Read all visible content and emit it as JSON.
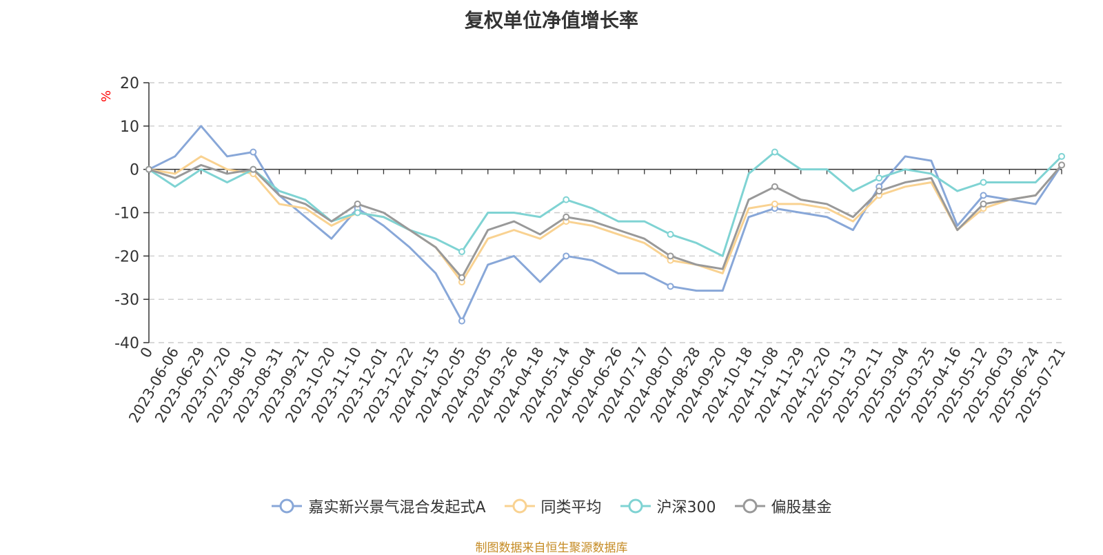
{
  "title": "复权单位净值增长率",
  "source_text": "制图数据来自恒生聚源数据库",
  "chart_data": {
    "type": "line",
    "title": "复权单位净值增长率",
    "xlabel": "",
    "ylabel": "%",
    "ylim": [
      -40,
      20
    ],
    "yticks": [
      20,
      10,
      0,
      -10,
      -20,
      -30,
      -40
    ],
    "grid": true,
    "legend_position": "bottom-center",
    "x_tick_labels": [
      "0",
      "2023-06-06",
      "2023-06-29",
      "2023-07-20",
      "2023-08-10",
      "2023-08-31",
      "2023-09-21",
      "2023-10-20",
      "2023-11-10",
      "2023-12-01",
      "2023-12-22",
      "2024-01-15",
      "2024-02-05",
      "2024-03-05",
      "2024-03-26",
      "2024-04-18",
      "2024-05-14",
      "2024-06-04",
      "2024-06-26",
      "2024-07-17",
      "2024-08-07",
      "2024-08-28",
      "2024-09-20",
      "2024-10-18",
      "2024-11-08",
      "2024-11-29",
      "2024-12-20",
      "2025-01-13",
      "2025-02-11",
      "2025-03-04",
      "2025-03-25",
      "2025-04-16",
      "2025-05-12",
      "2025-06-03",
      "2025-06-24",
      "2025-07-21"
    ],
    "x_index": [
      0,
      1,
      2,
      3,
      4,
      5,
      6,
      7,
      8,
      9,
      10,
      11,
      12,
      13,
      14,
      15,
      16,
      17,
      18,
      19,
      20,
      21,
      22,
      23,
      24,
      25,
      26,
      27,
      28,
      29,
      30,
      31,
      32,
      33,
      34,
      35
    ],
    "series": [
      {
        "name": "嘉实新兴景气混合发起式A",
        "color": "#88a7d8",
        "values": [
          0,
          3,
          10,
          3,
          4,
          -6,
          -11,
          -16,
          -9,
          -13,
          -18,
          -24,
          -35,
          -22,
          -20,
          -26,
          -20,
          -21,
          -24,
          -24,
          -27,
          -28,
          -28,
          -11,
          -9,
          -10,
          -11,
          -14,
          -4,
          3,
          2,
          -13,
          -6,
          -7,
          -8,
          1
        ]
      },
      {
        "name": "同类平均",
        "color": "#f9d291",
        "values": [
          0,
          -1,
          3,
          0,
          -1,
          -8,
          -9,
          -13,
          -10,
          -11,
          -14,
          -18,
          -26,
          -16,
          -14,
          -16,
          -12,
          -13,
          -15,
          -17,
          -21,
          -22,
          -24,
          -9,
          -8,
          -8,
          -9,
          -12,
          -6,
          -4,
          -3,
          -14,
          -9,
          -7,
          -6,
          1
        ]
      },
      {
        "name": "沪深300",
        "color": "#7fd3d3",
        "values": [
          0,
          -4,
          0,
          -3,
          0,
          -5,
          -7,
          -12,
          -10,
          -11,
          -14,
          -16,
          -19,
          -10,
          -10,
          -11,
          -7,
          -9,
          -12,
          -12,
          -15,
          -17,
          -20,
          -1,
          4,
          0,
          0,
          -5,
          -2,
          0,
          -1,
          -5,
          -3,
          -3,
          -3,
          3
        ]
      },
      {
        "name": "偏股基金",
        "color": "#999999",
        "values": [
          0,
          -2,
          1,
          -1,
          0,
          -6,
          -8,
          -12,
          -8,
          -10,
          -14,
          -18,
          -25,
          -14,
          -12,
          -15,
          -11,
          -12,
          -14,
          -16,
          -20,
          -22,
          -23,
          -7,
          -4,
          -7,
          -8,
          -11,
          -5,
          -3,
          -2,
          -14,
          -8,
          -7,
          -6,
          1
        ]
      }
    ]
  }
}
